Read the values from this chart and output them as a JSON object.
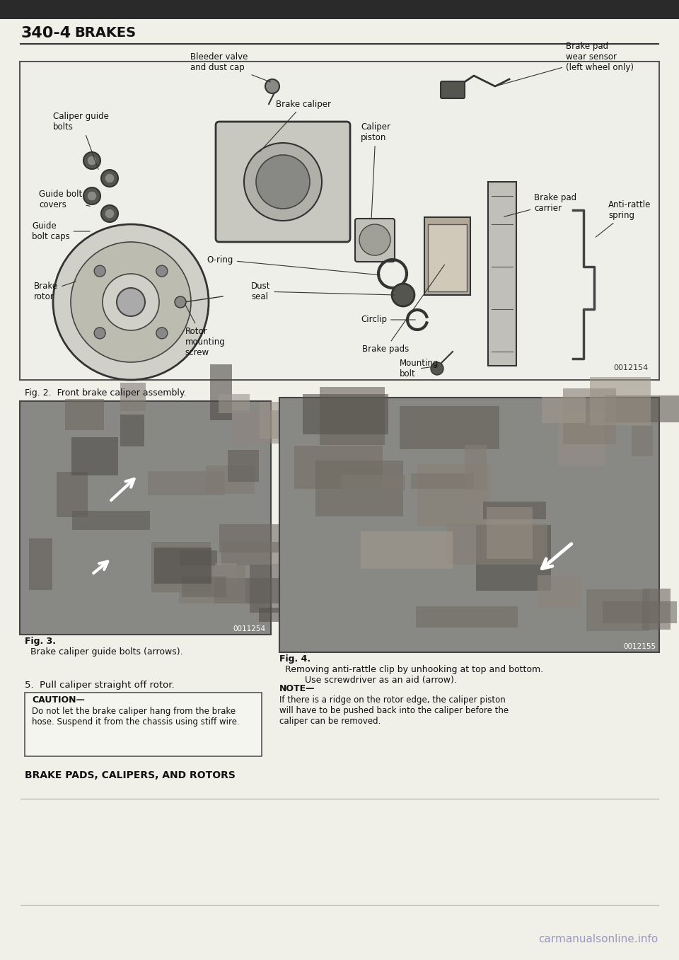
{
  "page_title": "340-4",
  "page_subtitle": "BRAKES",
  "background_color": "#f5f5f0",
  "page_bg": "#e8e8e0",
  "fig2_caption": "Fig. 2.  Front brake caliper assembly.",
  "fig3_caption_bold": "Fig. 3.",
  "fig3_caption_rest": "  Brake caliper guide bolts (arrows).",
  "fig4_caption_bold": "Fig. 4.",
  "fig4_caption_rest": "  Removing anti-rattle clip by unhooking at top and bottom.\n         Use screwdriver as an aid (arrow).",
  "fig3_code": "0011254",
  "fig4_code": "0012155",
  "diagram_code": "0012154",
  "step5_text": "5.  Pull caliper straight off rotor.",
  "caution_title": "CAUTION—",
  "caution_text": "Do not let the brake caliper hang from the brake\nhose. Suspend it from the chassis using stiff wire.",
  "note_title": "NOTE—",
  "note_text": "If there is a ridge on the rotor edge, the caliper piston\nwill have to be pushed back into the caliper before the\ncaliper can be removed.",
  "section_title": "BRAKE PADS, CALIPERS, AND ROTORS",
  "watermark": "carmanualsonline.info"
}
